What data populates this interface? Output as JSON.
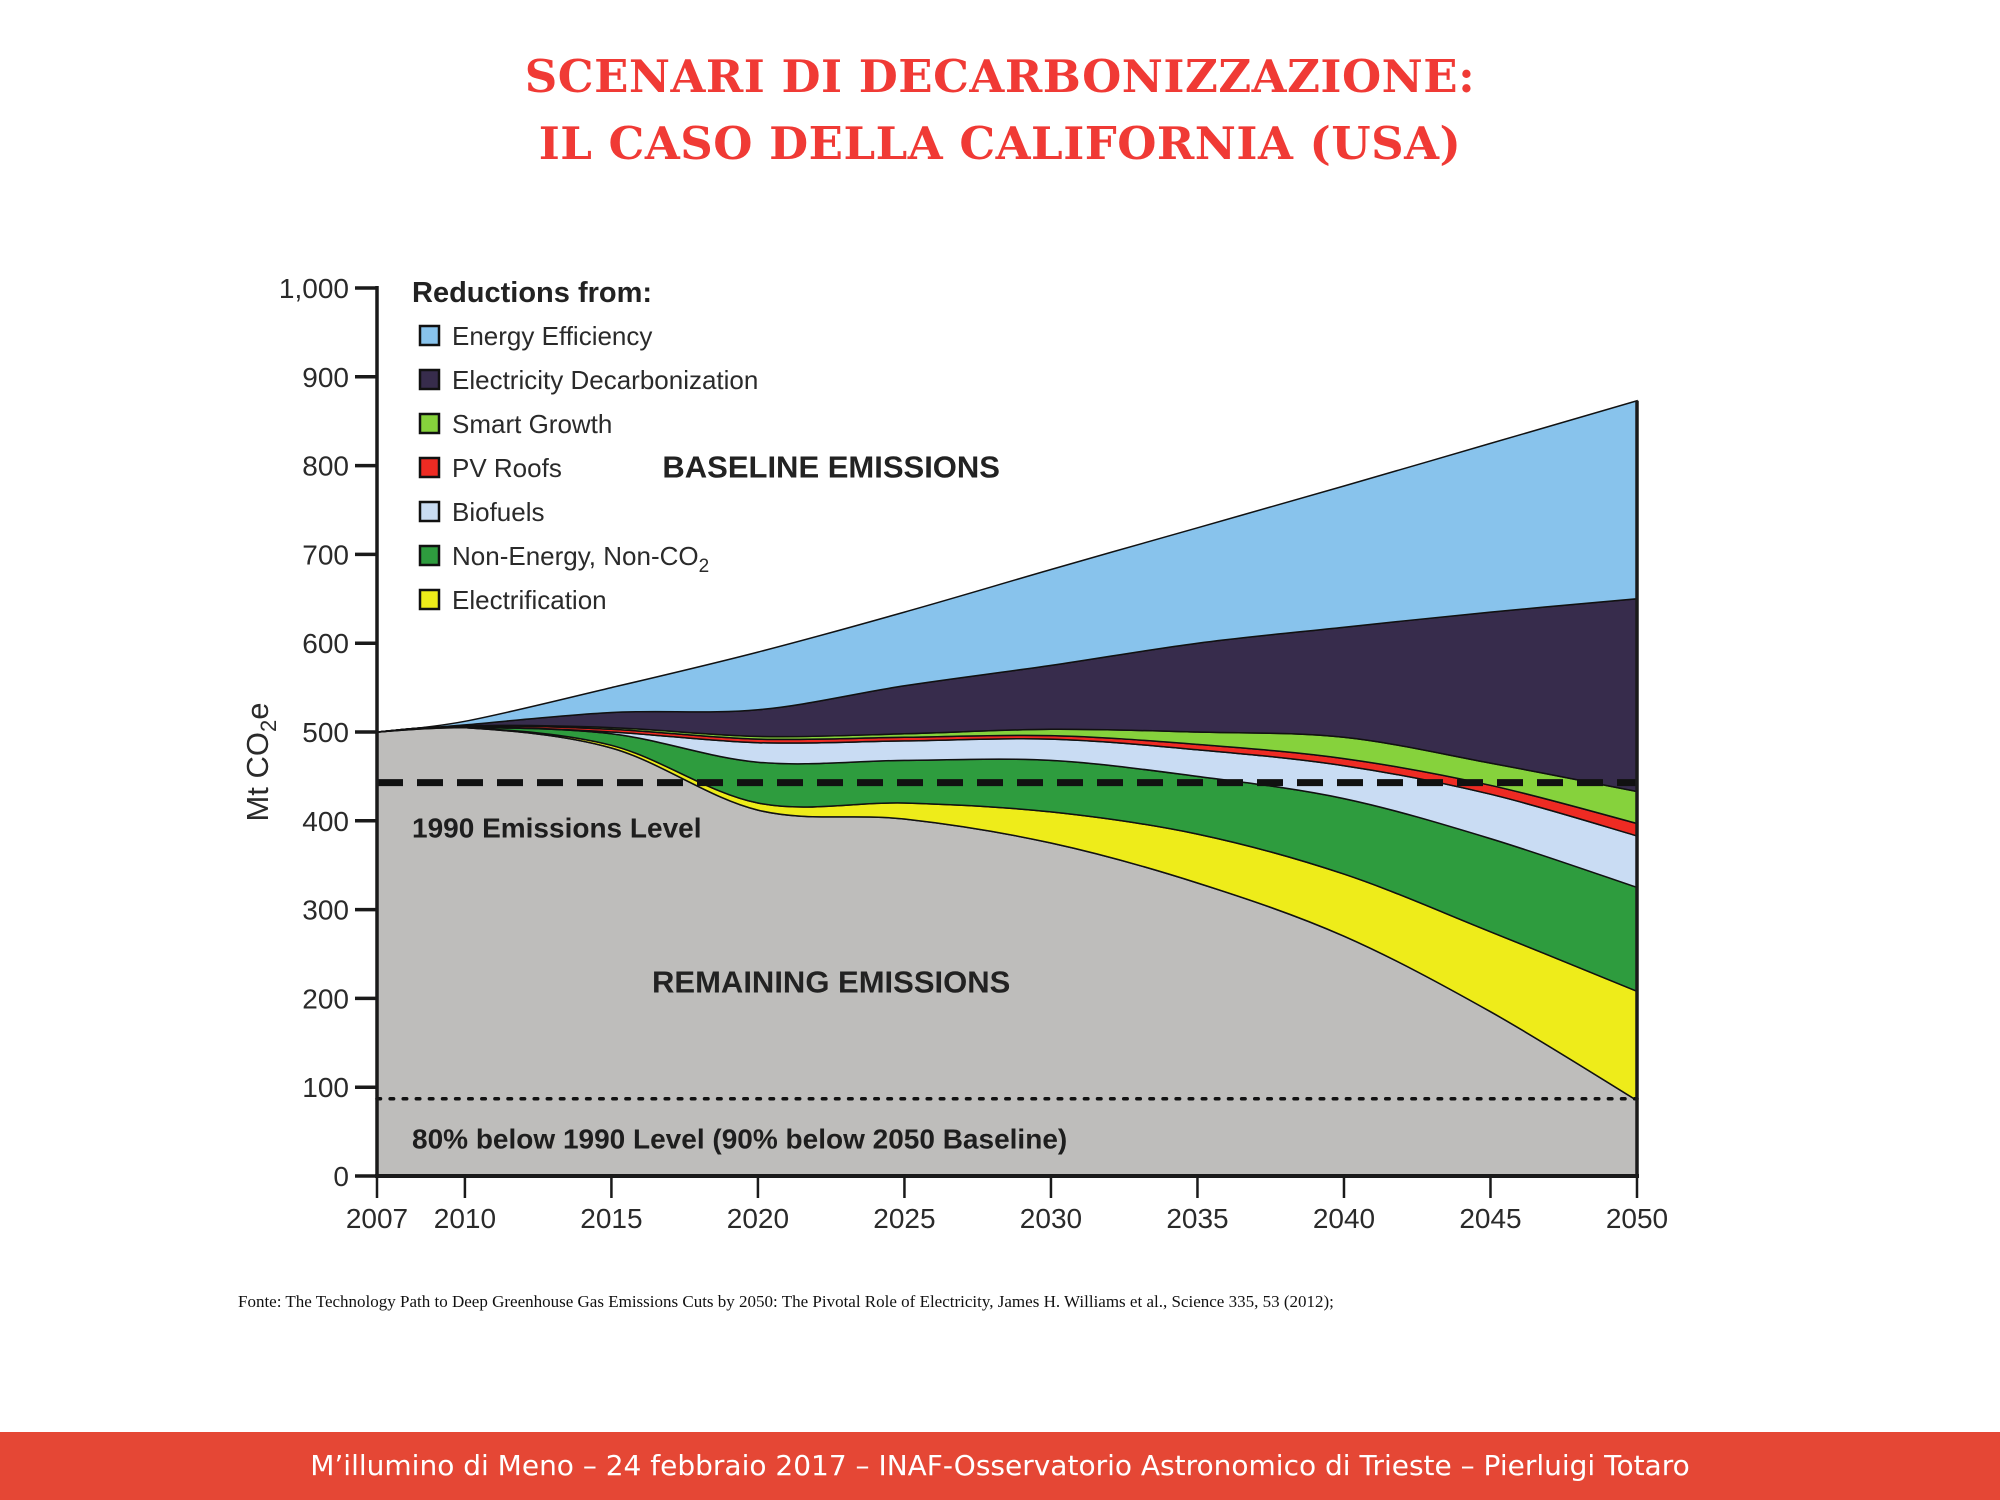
{
  "slide": {
    "title_line1": "SCENARI DI DECARBONIZZAZIONE:",
    "title_line2": "IL CASO DELLA CALIFORNIA (USA)",
    "source": "Fonte: The Technology Path to Deep Greenhouse Gas Emissions Cuts by 2050: The Pivotal Role of Electricity, James H. Williams et al., Science 335, 53 (2012);",
    "footer": "M’illumino di Meno – 24 febbraio 2017 – INAF-Osservatorio Astronomico di Trieste – Pierluigi Totaro",
    "colors": {
      "title": "#f03a35",
      "footer_bg": "#e54735"
    }
  },
  "chart_data": {
    "type": "area",
    "stacked": true,
    "title": "",
    "xlabel": "",
    "ylabel": "Mt CO2e",
    "xlim": [
      2007,
      2050
    ],
    "ylim": [
      0,
      1000
    ],
    "x_ticks": [
      2007,
      2010,
      2015,
      2020,
      2025,
      2030,
      2035,
      2040,
      2045,
      2050
    ],
    "y_ticks": [
      0,
      100,
      200,
      300,
      400,
      500,
      600,
      700,
      800,
      900,
      1000
    ],
    "y_tick_labels": [
      "0",
      "100",
      "200",
      "300",
      "400",
      "500",
      "600",
      "700",
      "800",
      "900",
      "1,000"
    ],
    "grid": false,
    "legend_title": "Reductions from:",
    "legend_position": "top-left",
    "x": [
      2007,
      2010,
      2015,
      2020,
      2025,
      2030,
      2035,
      2040,
      2045,
      2050
    ],
    "remaining": {
      "name": "Remaining Emissions",
      "color": "#bebdbb",
      "values": [
        500,
        505,
        482,
        412,
        402,
        375,
        330,
        270,
        185,
        85
      ]
    },
    "series": [
      {
        "name": "Electrification",
        "color": "#eeec1a",
        "top": [
          500,
          505,
          485,
          420,
          420,
          410,
          385,
          340,
          275,
          208
        ]
      },
      {
        "name": "Non-Energy, Non-CO",
        "name_sub": "2",
        "color": "#2e9c3e",
        "top": [
          500,
          505,
          498,
          466,
          468,
          468,
          450,
          425,
          380,
          325
        ]
      },
      {
        "name": "Biofuels",
        "color": "#c9dcf3",
        "top": [
          500,
          506,
          500,
          488,
          490,
          492,
          480,
          462,
          430,
          383
        ]
      },
      {
        "name": "PV Roofs",
        "color": "#ee2b23",
        "top": [
          500,
          507,
          503,
          492,
          494,
          496,
          486,
          470,
          440,
          397
        ]
      },
      {
        "name": "Smart Growth",
        "color": "#86d23c",
        "top": [
          500,
          507,
          505,
          495,
          498,
          503,
          500,
          494,
          465,
          433
        ]
      },
      {
        "name": "Electricity Decarbonization",
        "color": "#372c4c",
        "top": [
          500,
          508,
          522,
          525,
          552,
          575,
          600,
          618,
          635,
          650
        ]
      },
      {
        "name": "Energy Efficiency",
        "color": "#88c3ec",
        "top": [
          500,
          512,
          550,
          590,
          635,
          683,
          730,
          777,
          825,
          873
        ]
      }
    ],
    "legend_order": [
      "Energy Efficiency",
      "Electricity Decarbonization",
      "Smart Growth",
      "PV Roofs",
      "Biofuels",
      "Non-Energy, Non-CO",
      "Electrification"
    ],
    "reference_lines": [
      {
        "label": "1990 Emissions Level",
        "value": 443,
        "style": "dashed"
      },
      {
        "label": "80% below 1990 Level (90% below 2050 Baseline)",
        "value": 87,
        "style": "dotted"
      }
    ],
    "annotations": [
      {
        "text": "BASELINE EMISSIONS",
        "x": 2022.5,
        "y": 800
      },
      {
        "text": "REMAINING EMISSIONS",
        "x": 2022.5,
        "y": 220
      }
    ]
  }
}
